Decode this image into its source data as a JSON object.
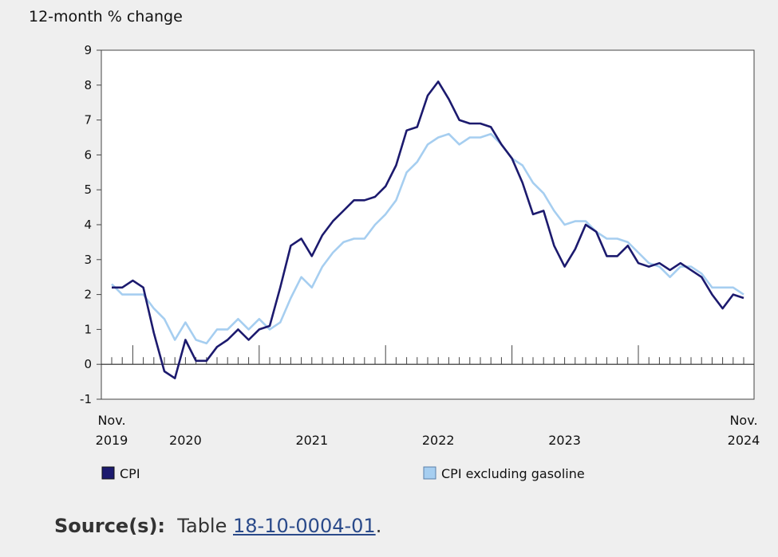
{
  "chart_data": {
    "type": "line",
    "title": "",
    "ylabel": "12-month % change",
    "ylim": [
      -1,
      9
    ],
    "yticks": [
      "-1",
      "0",
      "1",
      "2",
      "3",
      "4",
      "5",
      "6",
      "7",
      "8",
      "9"
    ],
    "x_start": "2019-11",
    "x_end": "2024-11",
    "x_labels": [
      {
        "month": "2019-11",
        "line1": "Nov.",
        "line2": "2019"
      },
      {
        "month": "2020-06",
        "line1": "",
        "line2": "2020"
      },
      {
        "month": "2021-06",
        "line1": "",
        "line2": "2021"
      },
      {
        "month": "2022-06",
        "line1": "",
        "line2": "2022"
      },
      {
        "month": "2023-06",
        "line1": "",
        "line2": "2023"
      },
      {
        "month": "2024-11",
        "line1": "Nov.",
        "line2": "2024"
      }
    ],
    "grid": false,
    "legend_position": "bottom",
    "series": [
      {
        "name": "CPI",
        "color": "#1c1a6e",
        "values": [
          2.2,
          2.2,
          2.4,
          2.2,
          0.9,
          -0.2,
          -0.4,
          0.7,
          0.1,
          0.1,
          0.5,
          0.7,
          1.0,
          0.7,
          1.0,
          1.1,
          2.2,
          3.4,
          3.6,
          3.1,
          3.7,
          4.1,
          4.4,
          4.7,
          4.7,
          4.8,
          5.1,
          5.7,
          6.7,
          6.8,
          7.7,
          8.1,
          7.6,
          7.0,
          6.9,
          6.9,
          6.8,
          6.3,
          5.9,
          5.2,
          4.3,
          4.4,
          3.4,
          2.8,
          3.3,
          4.0,
          3.8,
          3.1,
          3.1,
          3.4,
          2.9,
          2.8,
          2.9,
          2.7,
          2.9,
          2.7,
          2.5,
          2.0,
          1.6,
          2.0,
          1.9
        ]
      },
      {
        "name": "CPI excluding gasoline",
        "color": "#a6cef0",
        "values": [
          2.3,
          2.0,
          2.0,
          2.0,
          1.6,
          1.3,
          0.7,
          1.2,
          0.7,
          0.6,
          1.0,
          1.0,
          1.3,
          1.0,
          1.3,
          1.0,
          1.2,
          1.9,
          2.5,
          2.2,
          2.8,
          3.2,
          3.5,
          3.6,
          3.6,
          4.0,
          4.3,
          4.7,
          5.5,
          5.8,
          6.3,
          6.5,
          6.6,
          6.3,
          6.5,
          6.5,
          6.6,
          6.3,
          5.9,
          5.7,
          5.2,
          4.9,
          4.4,
          4.0,
          4.1,
          4.1,
          3.8,
          3.6,
          3.6,
          3.5,
          3.2,
          2.9,
          2.8,
          2.5,
          2.8,
          2.8,
          2.6,
          2.2,
          2.2,
          2.2,
          2.0
        ]
      }
    ]
  },
  "source": {
    "label": "Source(s):",
    "prefix": "Table",
    "link_text": "18-10-0004-01",
    "suffix": "."
  }
}
